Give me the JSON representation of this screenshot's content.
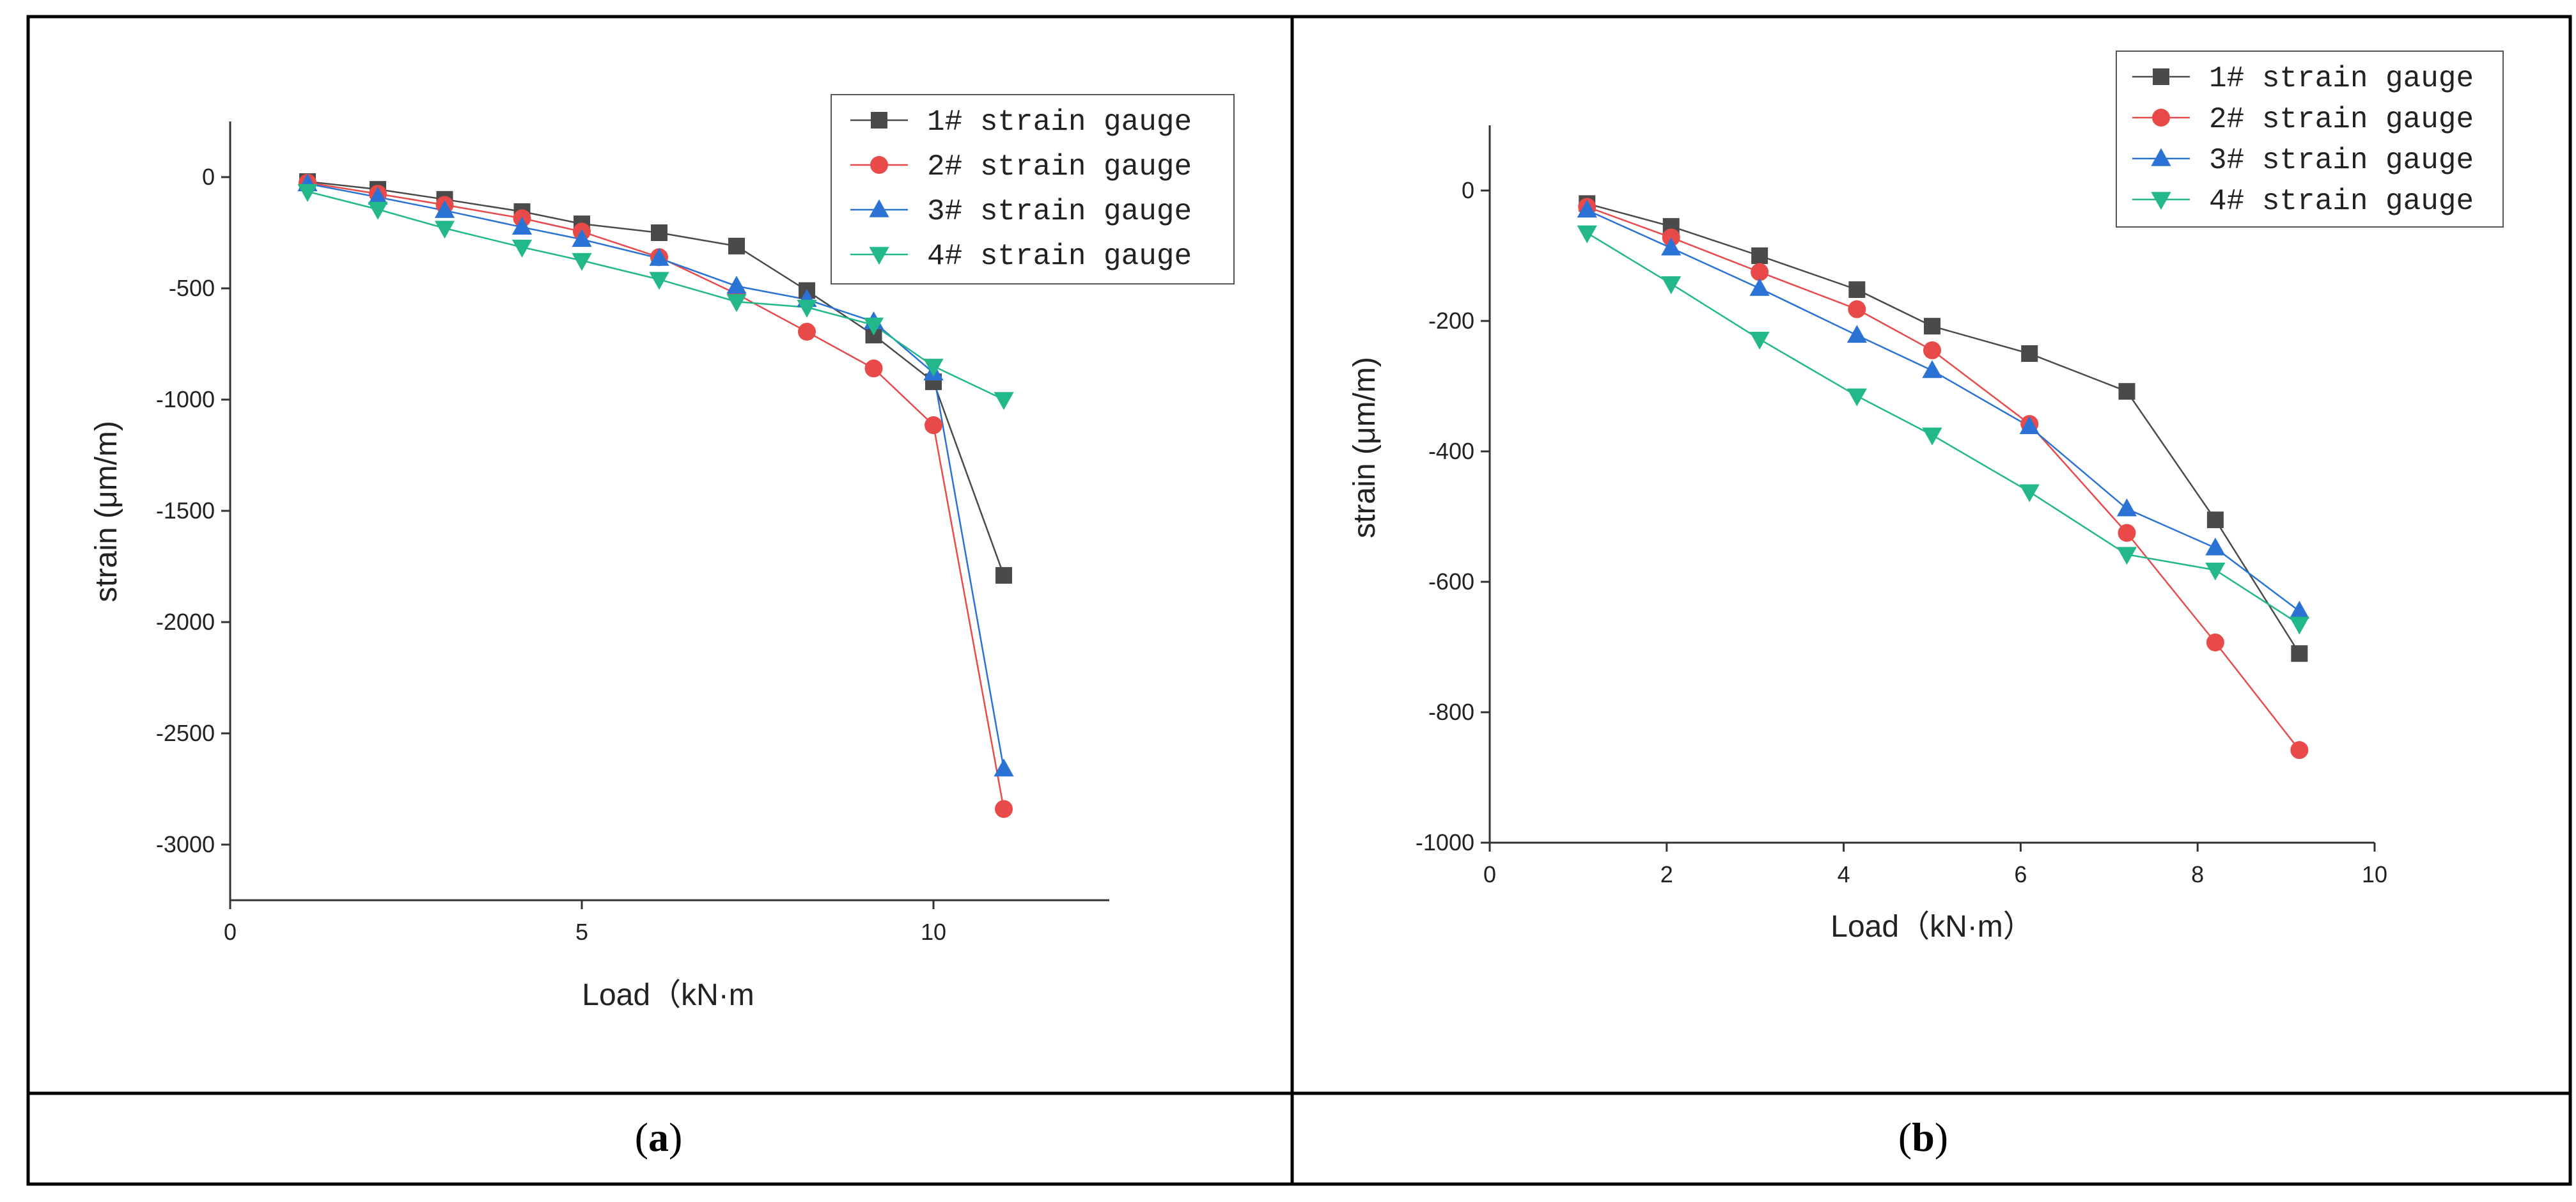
{
  "captions": {
    "a_open": "(",
    "a_letter": "a",
    "a_close": ")",
    "b_open": "(",
    "b_letter": "b",
    "b_close": ")"
  },
  "chart_data": [
    {
      "id": "a",
      "type": "line",
      "title": "",
      "xlabel": "Load（kN·m",
      "ylabel": "strain (μm/m)",
      "xlim": [
        0,
        12.5
      ],
      "ylim": [
        -3250,
        250
      ],
      "xticks": [
        0,
        5,
        10
      ],
      "xtick_labels": [
        "0",
        "5",
        "10"
      ],
      "yticks": [
        0,
        -500,
        -1000,
        -1500,
        -2000,
        -2500,
        -3000
      ],
      "ytick_labels": [
        "0",
        "-500",
        "-1000",
        "-1500",
        "-2000",
        "-2500",
        "-3000"
      ],
      "legend_position": "top-right",
      "series": [
        {
          "name": "1# strain gauge",
          "color": "#4a4a4a",
          "marker": "square",
          "x": [
            1.1,
            2.1,
            3.05,
            4.15,
            5.0,
            6.1,
            7.2,
            8.2,
            9.15,
            10.0,
            11.0
          ],
          "y": [
            -20,
            -55,
            -100,
            -155,
            -210,
            -250,
            -310,
            -510,
            -710,
            -920,
            -1790
          ]
        },
        {
          "name": "2# strain gauge",
          "color": "#e84a4a",
          "marker": "circle",
          "x": [
            1.1,
            2.1,
            3.05,
            4.15,
            5.0,
            6.1,
            7.2,
            8.2,
            9.15,
            10.0,
            11.0
          ],
          "y": [
            -25,
            -75,
            -125,
            -185,
            -245,
            -360,
            -525,
            -695,
            -860,
            -1115,
            -2840
          ]
        },
        {
          "name": "3# strain gauge",
          "color": "#2a72d4",
          "marker": "triangle-up",
          "x": [
            1.1,
            2.1,
            3.05,
            4.15,
            5.0,
            6.1,
            7.2,
            8.2,
            9.15,
            10.0,
            11.0
          ],
          "y": [
            -30,
            -90,
            -150,
            -225,
            -280,
            -365,
            -490,
            -550,
            -650,
            -880,
            -2660
          ]
        },
        {
          "name": "4# strain gauge",
          "color": "#22b88a",
          "marker": "triangle-down",
          "x": [
            1.1,
            2.1,
            3.05,
            4.15,
            5.0,
            6.1,
            7.2,
            8.2,
            9.15,
            10.0,
            11.0
          ],
          "y": [
            -65,
            -145,
            -230,
            -315,
            -375,
            -460,
            -560,
            -585,
            -665,
            -850,
            -1000
          ]
        }
      ]
    },
    {
      "id": "b",
      "type": "line",
      "title": "",
      "xlabel": "Load（kN·m）",
      "ylabel": "strain (μm/m)",
      "xlim": [
        0,
        10
      ],
      "ylim": [
        -1000,
        100
      ],
      "xticks": [
        0,
        2,
        4,
        6,
        8,
        10
      ],
      "xtick_labels": [
        "0",
        "2",
        "4",
        "6",
        "8",
        "10"
      ],
      "yticks": [
        0,
        -200,
        -400,
        -600,
        -800,
        -1000
      ],
      "ytick_labels": [
        "0",
        "-200",
        "-400",
        "-600",
        "-800",
        "-1000"
      ],
      "legend_position": "top-right",
      "series": [
        {
          "name": "1# strain gauge",
          "color": "#4a4a4a",
          "marker": "square",
          "x": [
            1.1,
            2.05,
            3.05,
            4.15,
            5.0,
            6.1,
            7.2,
            8.2,
            9.15
          ],
          "y": [
            -20,
            -55,
            -100,
            -152,
            -208,
            -250,
            -308,
            -505,
            -710
          ]
        },
        {
          "name": "2# strain gauge",
          "color": "#e84a4a",
          "marker": "circle",
          "x": [
            1.1,
            2.05,
            3.05,
            4.15,
            5.0,
            6.1,
            7.2,
            8.2,
            9.15
          ],
          "y": [
            -25,
            -72,
            -125,
            -182,
            -245,
            -358,
            -525,
            -693,
            -858
          ]
        },
        {
          "name": "3# strain gauge",
          "color": "#2a72d4",
          "marker": "triangle-up",
          "x": [
            1.1,
            2.05,
            3.05,
            4.15,
            5.0,
            6.1,
            7.2,
            8.2,
            9.15
          ],
          "y": [
            -30,
            -88,
            -150,
            -222,
            -276,
            -362,
            -488,
            -548,
            -645
          ]
        },
        {
          "name": "4# strain gauge",
          "color": "#22b88a",
          "marker": "triangle-down",
          "x": [
            1.1,
            2.05,
            3.05,
            4.15,
            5.0,
            6.1,
            7.2,
            8.2,
            9.15
          ],
          "y": [
            -65,
            -143,
            -228,
            -315,
            -375,
            -462,
            -558,
            -582,
            -665
          ]
        }
      ]
    }
  ]
}
